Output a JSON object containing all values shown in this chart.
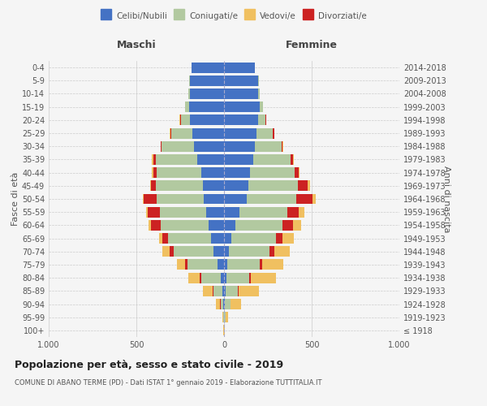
{
  "age_groups": [
    "100+",
    "95-99",
    "90-94",
    "85-89",
    "80-84",
    "75-79",
    "70-74",
    "65-69",
    "60-64",
    "55-59",
    "50-54",
    "45-49",
    "40-44",
    "35-39",
    "30-34",
    "25-29",
    "20-24",
    "15-19",
    "10-14",
    "5-9",
    "0-4"
  ],
  "birth_years": [
    "≤ 1918",
    "1919-1923",
    "1924-1928",
    "1929-1933",
    "1934-1938",
    "1939-1943",
    "1944-1948",
    "1949-1953",
    "1954-1958",
    "1959-1963",
    "1964-1968",
    "1969-1973",
    "1974-1978",
    "1979-1983",
    "1984-1988",
    "1989-1993",
    "1994-1998",
    "1999-2003",
    "2004-2008",
    "2009-2013",
    "2014-2018"
  ],
  "colors": {
    "celibi": "#4472c4",
    "coniugati": "#b2c9a0",
    "vedovi": "#f0c060",
    "divorziati": "#cc2222"
  },
  "male": {
    "celibi": [
      1,
      2,
      4,
      10,
      20,
      35,
      60,
      75,
      90,
      100,
      115,
      120,
      130,
      155,
      170,
      180,
      195,
      200,
      195,
      195,
      185
    ],
    "coniugati": [
      0,
      2,
      15,
      50,
      110,
      175,
      225,
      245,
      270,
      265,
      270,
      270,
      255,
      235,
      185,
      120,
      50,
      20,
      10,
      5,
      2
    ],
    "vedovi": [
      2,
      5,
      25,
      55,
      65,
      50,
      40,
      20,
      15,
      10,
      5,
      5,
      5,
      5,
      3,
      3,
      3,
      2,
      0,
      0,
      0
    ],
    "divorziati": [
      0,
      0,
      2,
      5,
      10,
      10,
      25,
      30,
      55,
      70,
      75,
      25,
      20,
      15,
      5,
      5,
      5,
      0,
      0,
      0,
      0
    ]
  },
  "female": {
    "celibi": [
      1,
      2,
      5,
      8,
      12,
      18,
      30,
      42,
      65,
      90,
      130,
      140,
      150,
      165,
      175,
      185,
      195,
      205,
      195,
      195,
      175
    ],
    "coniugati": [
      0,
      5,
      30,
      70,
      130,
      185,
      230,
      255,
      270,
      270,
      280,
      280,
      255,
      215,
      155,
      95,
      40,
      15,
      8,
      5,
      2
    ],
    "vedovi": [
      5,
      15,
      60,
      115,
      145,
      120,
      90,
      65,
      45,
      35,
      20,
      15,
      5,
      5,
      3,
      3,
      3,
      2,
      0,
      0,
      0
    ],
    "divorziati": [
      0,
      0,
      2,
      5,
      10,
      15,
      25,
      35,
      60,
      65,
      95,
      55,
      20,
      15,
      5,
      5,
      5,
      0,
      0,
      0,
      0
    ]
  },
  "title": "Popolazione per età, sesso e stato civile - 2019",
  "subtitle": "COMUNE DI ABANO TERME (PD) - Dati ISTAT 1° gennaio 2019 - Elaborazione TUTTITALIA.IT",
  "ylabel_left": "Fasce di età",
  "ylabel_right": "Anni di nascita",
  "xlabel_left": "Maschi",
  "xlabel_right": "Femmine",
  "xlim": 1000,
  "legend_labels": [
    "Celibi/Nubili",
    "Coniugati/e",
    "Vedovi/e",
    "Divorziati/e"
  ],
  "background_color": "#f5f5f5",
  "grid_color": "#cccccc"
}
